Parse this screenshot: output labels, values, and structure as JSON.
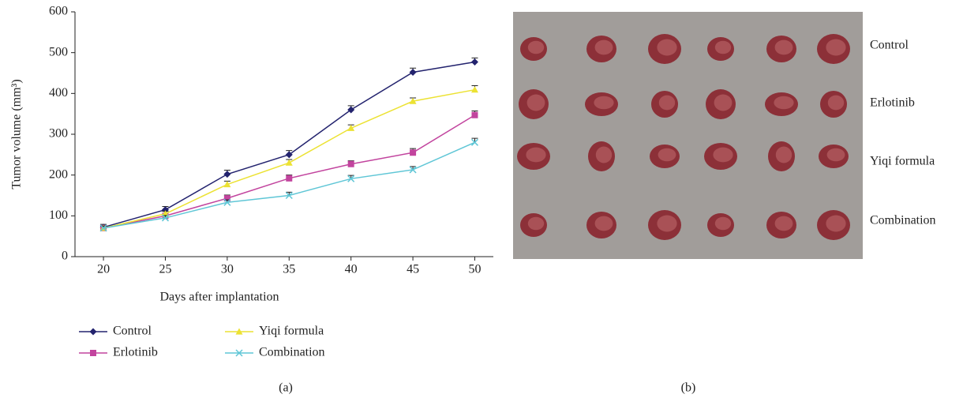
{
  "chart_data": {
    "type": "line",
    "x_label": "Days after implantation",
    "y_label": "Tumor volume (mm³)",
    "panel_label": "(a)",
    "x": [
      20,
      25,
      30,
      35,
      40,
      45,
      50
    ],
    "xlim": [
      17.7,
      51.5
    ],
    "xticks": [
      20,
      25,
      30,
      35,
      40,
      45,
      50
    ],
    "ylim": [
      0,
      600
    ],
    "yticks": [
      0,
      100,
      200,
      300,
      400,
      500,
      600
    ],
    "series": [
      {
        "name": "Control",
        "color": "#23236e",
        "marker": "diamond",
        "values": [
          72,
          115,
          202,
          250,
          360,
          452,
          477
        ],
        "errors": [
          7,
          8,
          10,
          10,
          10,
          10,
          10
        ]
      },
      {
        "name": "Erlotinib",
        "color": "#c2449e",
        "marker": "square",
        "values": [
          70,
          100,
          143,
          192,
          227,
          255,
          347
        ],
        "errors": [
          5,
          6,
          8,
          8,
          8,
          10,
          10
        ]
      },
      {
        "name": "Yiqi formula",
        "color": "#ece233",
        "marker": "triangle",
        "values": [
          70,
          105,
          177,
          230,
          315,
          381,
          409
        ],
        "errors": [
          5,
          6,
          8,
          8,
          8,
          8,
          10
        ]
      },
      {
        "name": "Combination",
        "color": "#5fc6d6",
        "marker": "cross",
        "values": [
          70,
          95,
          133,
          150,
          191,
          213,
          280
        ],
        "errors": [
          5,
          6,
          6,
          8,
          8,
          8,
          10
        ]
      }
    ]
  },
  "photo": {
    "row_labels": [
      "Control",
      "Erlotinib",
      "Yiqi formula",
      "Combination"
    ],
    "panel_label": "(b)"
  }
}
